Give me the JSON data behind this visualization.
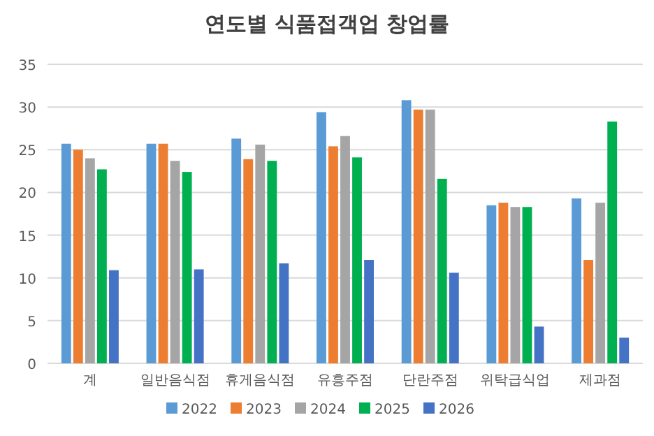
{
  "chart_data": {
    "type": "bar",
    "title": "연도별 식품접객업 창업률",
    "categories": [
      "계",
      "일반음식점",
      "휴게음식점",
      "유흥주점",
      "단란주점",
      "위탁급식업",
      "제과점"
    ],
    "series": [
      {
        "name": "2022",
        "color": "#5b9bd5",
        "values": [
          25.7,
          25.7,
          26.3,
          29.4,
          30.8,
          18.5,
          19.3
        ]
      },
      {
        "name": "2023",
        "color": "#ed7d31",
        "values": [
          25.0,
          25.7,
          23.9,
          25.4,
          29.7,
          18.8,
          12.1
        ]
      },
      {
        "name": "2024",
        "color": "#a5a5a5",
        "values": [
          24.0,
          23.7,
          25.6,
          26.6,
          29.7,
          18.3,
          18.8
        ]
      },
      {
        "name": "2025",
        "color": "#00b050",
        "values": [
          22.7,
          22.4,
          23.7,
          24.1,
          21.6,
          18.3,
          28.3
        ]
      },
      {
        "name": "2026",
        "color": "#4472c4",
        "values": [
          10.9,
          11.0,
          11.7,
          12.1,
          10.6,
          4.3,
          3.0
        ]
      }
    ],
    "ylim": [
      0,
      35
    ],
    "yticks": [
      0,
      5,
      10,
      15,
      20,
      25,
      30,
      35
    ],
    "grid": "y",
    "legend": "bottom"
  }
}
